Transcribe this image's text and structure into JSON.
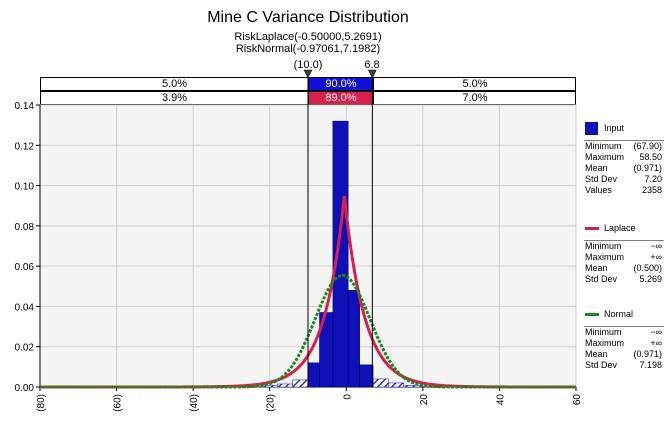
{
  "chart_data": {
    "type": "histogram",
    "title": "Mine C Variance Distribution",
    "fit_labels": [
      "RiskLaplace(-0.50000,5.2691)",
      "RiskNormal(-0.97061,7.1982)"
    ],
    "x_ticks": [
      "(80)",
      "(60)",
      "(40)",
      "(20)",
      "0",
      "20",
      "40",
      "60"
    ],
    "x_tick_values": [
      -80,
      -60,
      -40,
      -20,
      0,
      20,
      40,
      60
    ],
    "xlim": [
      -80,
      60
    ],
    "y_ticks": [
      "0.00",
      "0.02",
      "0.04",
      "0.06",
      "0.08",
      "0.10",
      "0.12",
      "0.14"
    ],
    "y_tick_values": [
      0,
      0.02,
      0.04,
      0.06,
      0.08,
      0.1,
      0.12,
      0.14
    ],
    "ylim": [
      0,
      0.14
    ],
    "grid": true,
    "delimiters": {
      "left_label": "(10.0)",
      "right_label": "6.8",
      "left_value": -10.0,
      "right_value": 6.8
    },
    "probability_bands": [
      {
        "left": "5.0%",
        "middle": "90.0%",
        "right": "5.0%",
        "color": "#1010d8"
      },
      {
        "left": "3.9%",
        "middle": "89.0%",
        "right": "7.0%",
        "color": "#d8204c"
      }
    ],
    "histogram": {
      "name": "Input",
      "color": "#1010b8",
      "bins": [
        {
          "x0": -10,
          "x1": -7,
          "value": 0.012
        },
        {
          "x0": -7,
          "x1": -3.5,
          "value": 0.037
        },
        {
          "x0": -3.5,
          "x1": 0.5,
          "value": 0.132
        },
        {
          "x0": 0.5,
          "x1": 3.5,
          "value": 0.048
        },
        {
          "x0": 3.5,
          "x1": 7,
          "value": 0.011
        }
      ],
      "tail_bins": [
        {
          "x0": -22,
          "x1": -18,
          "value": 0.0008
        },
        {
          "x0": -18,
          "x1": -14,
          "value": 0.0015
        },
        {
          "x0": -14,
          "x1": -10,
          "value": 0.0035
        },
        {
          "x0": 7,
          "x1": 11,
          "value": 0.004
        },
        {
          "x0": 11,
          "x1": 15,
          "value": 0.002
        },
        {
          "x0": 15,
          "x1": 20,
          "value": 0.0008
        }
      ]
    },
    "series": [
      {
        "name": "Laplace",
        "type": "laplace",
        "mu": -0.5,
        "b": 5.2691,
        "color": "#d8204c"
      },
      {
        "name": "Normal",
        "type": "normal",
        "mu": -0.97061,
        "sigma": 7.1982,
        "color": "#1a8a1a"
      }
    ]
  },
  "stats_panels": [
    {
      "name": "Input",
      "swatch": "box",
      "color": "#1010b8",
      "rows": [
        {
          "k": "Minimum",
          "v": "(67.90)"
        },
        {
          "k": "Maximum",
          "v": "58.50"
        },
        {
          "k": "Mean",
          "v": "(0.971)"
        },
        {
          "k": "Std Dev",
          "v": "7.20"
        },
        {
          "k": "Values",
          "v": "2358"
        }
      ]
    },
    {
      "name": "Laplace",
      "swatch": "line",
      "color": "#d8204c",
      "rows": [
        {
          "k": "Minimum",
          "v": "−∞"
        },
        {
          "k": "Maximum",
          "v": "+∞"
        },
        {
          "k": "Mean",
          "v": "(0.500)"
        },
        {
          "k": "Std Dev",
          "v": "5.269"
        }
      ]
    },
    {
      "name": "Normal",
      "swatch": "line",
      "color": "#1a8a1a",
      "rows": [
        {
          "k": "Minimum",
          "v": "−∞"
        },
        {
          "k": "Maximum",
          "v": "+∞"
        },
        {
          "k": "Mean",
          "v": "(0.971)"
        },
        {
          "k": "Std Dev",
          "v": "7.198"
        }
      ]
    }
  ]
}
